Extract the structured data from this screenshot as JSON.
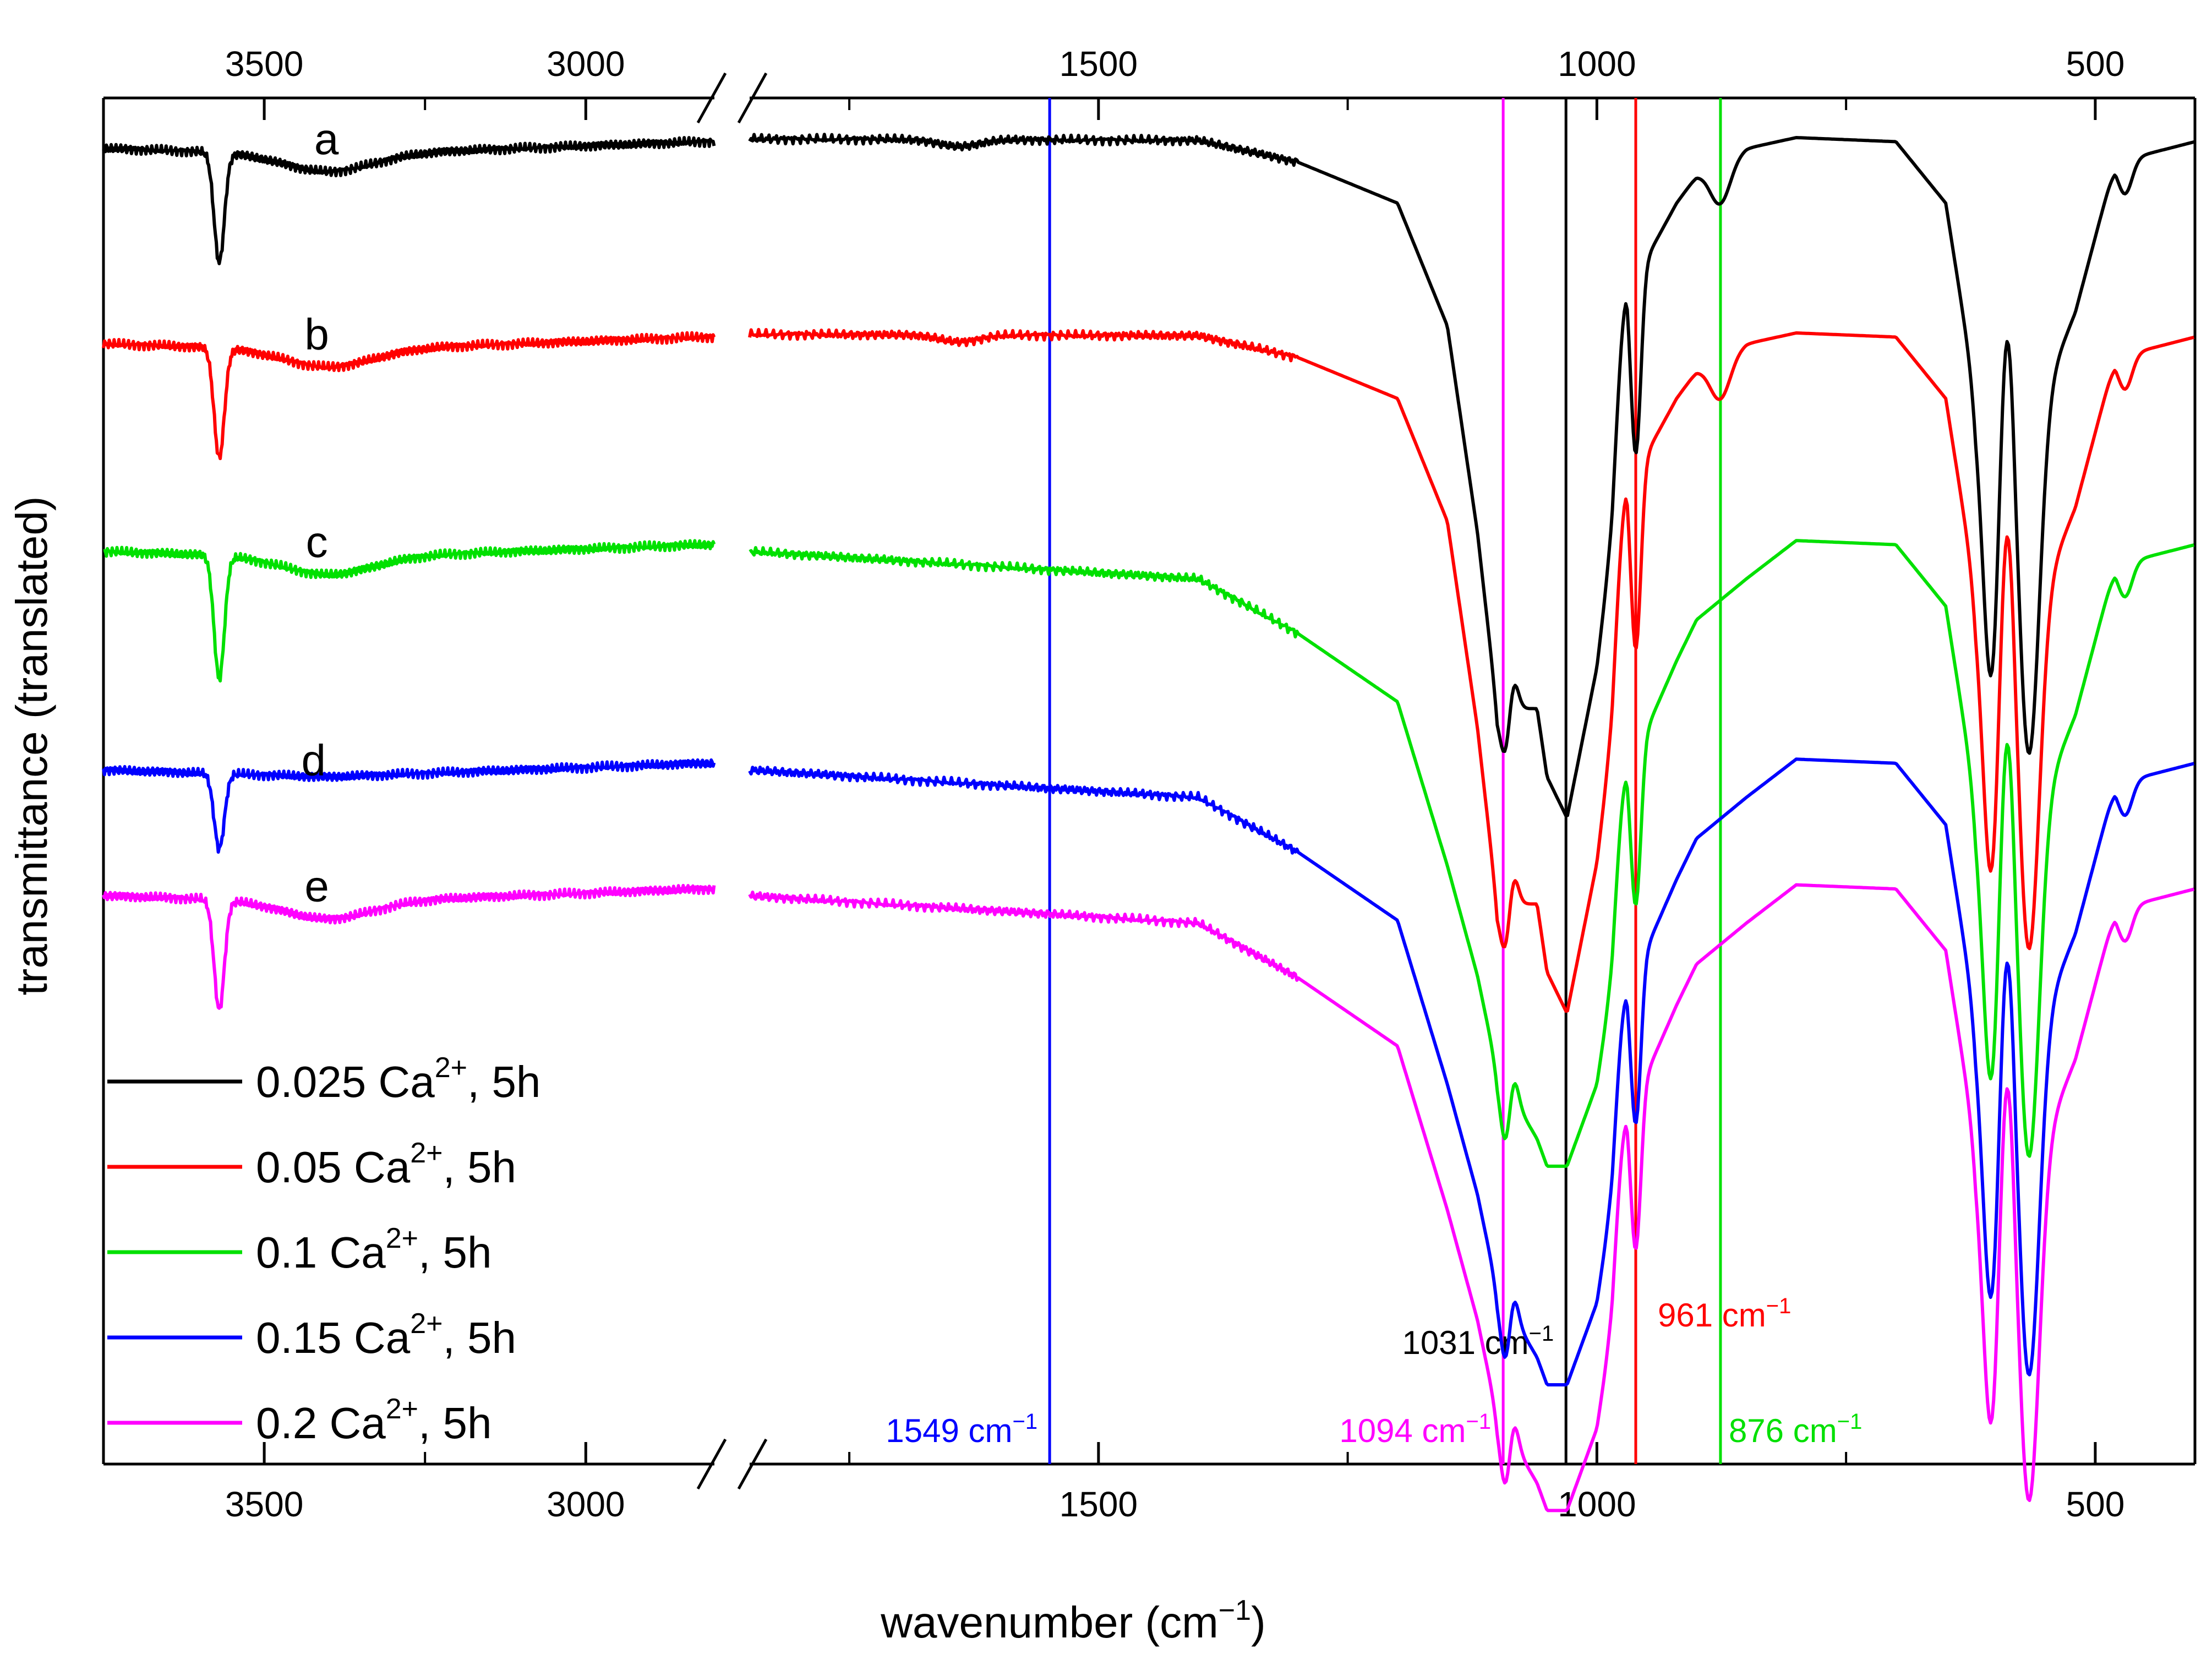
{
  "chart_data": {
    "type": "line",
    "title": "",
    "xlabel": "wavenumber (cm⁻¹)",
    "ylabel": "transmittance (translated)",
    "x_axis": {
      "reversed": true,
      "broken": true,
      "segments": [
        {
          "range": [
            3750,
            2800
          ],
          "ticks": [
            3500,
            3000
          ],
          "minor_ticks": [
            3750,
            3250,
            2750
          ]
        },
        {
          "range": [
            1850,
            400
          ],
          "ticks": [
            1500,
            1000,
            500
          ],
          "minor_ticks": [
            1750,
            1250,
            750
          ]
        }
      ]
    },
    "y_axis": {
      "range": [
        0,
        10
      ],
      "ticks_shown": false
    },
    "reference_lines": [
      {
        "x": 1549,
        "label": "1549 cm⁻¹",
        "color": "#0000ff",
        "label_position": "bottom-left"
      },
      {
        "x": 1094,
        "label": "1094 cm⁻¹",
        "color": "#ff00ff",
        "label_position": "bottom-left"
      },
      {
        "x": 1031,
        "label": "1031 cm⁻¹",
        "color": "#000000",
        "label_position": "lower-left"
      },
      {
        "x": 961,
        "label": "961 cm⁻¹",
        "color": "#ff0000",
        "label_position": "lower-right"
      },
      {
        "x": 876,
        "label": "876 cm⁻¹",
        "color": "#00e000",
        "label_position": "bottom-right"
      }
    ],
    "legend": {
      "position": "lower-left",
      "entries": [
        {
          "text": "0.025 Ca",
          "sup": "2+",
          "suffix": ", 5h",
          "color": "#000000"
        },
        {
          "text": "0.05 Ca",
          "sup": "2+",
          "suffix": ", 5h",
          "color": "#ff0000"
        },
        {
          "text": "0.1 Ca",
          "sup": "2+",
          "suffix": ", 5h",
          "color": "#00e000"
        },
        {
          "text": "0.15 Ca",
          "sup": "2+",
          "suffix": ", 5h",
          "color": "#0000ff"
        },
        {
          "text": "0.2 Ca",
          "sup": "2+",
          "suffix": ", 5h",
          "color": "#ff00ff"
        }
      ]
    },
    "series": [
      {
        "name": "0.025 Ca2+, 5h",
        "label": "a",
        "color": "#000000",
        "label_x": 3660,
        "baseline": 9.63,
        "slope": [
          [
            3750,
            0
          ],
          [
            3400,
            -0.05
          ],
          [
            2820,
            0.05
          ],
          [
            1850,
            0.07
          ],
          [
            1400,
            0.06
          ],
          [
            1300,
            -0.1
          ],
          [
            1200,
            -0.4
          ],
          [
            1150,
            -1.3
          ],
          [
            1120,
            -2.8
          ],
          [
            1100,
            -4.1
          ],
          [
            1060,
            -4.1
          ],
          [
            1050,
            -4.6
          ],
          [
            1030,
            -4.9
          ],
          [
            1000,
            -3.8
          ],
          [
            985,
            -2.9
          ],
          [
            970,
            -1.2
          ],
          [
            950,
            -0.8
          ],
          [
            920,
            -0.4
          ],
          [
            900,
            -0.2
          ],
          [
            850,
            0
          ],
          [
            800,
            0.08
          ],
          [
            700,
            0.05
          ],
          [
            650,
            -0.4
          ],
          [
            620,
            -1.8
          ],
          [
            580,
            -2.3
          ],
          [
            520,
            -1.2
          ],
          [
            480,
            -0.1
          ],
          [
            400,
            0.05
          ]
        ],
        "peaks": [
          [
            3570,
            0.8,
            8
          ],
          [
            3400,
            0.12,
            70
          ],
          [
            1640,
            0.05,
            20
          ],
          [
            1090,
            0.5,
            6
          ],
          [
            961,
            1.3,
            5
          ],
          [
            876,
            0.3,
            10
          ],
          [
            603,
            2.2,
            9
          ],
          [
            566,
            2.4,
            10
          ],
          [
            470,
            0.25,
            7
          ]
        ],
        "bumps": [
          [
            1085,
            0.45,
            5
          ],
          [
            975,
            0.4,
            8
          ],
          [
            590,
            1.6,
            8
          ]
        ]
      },
      {
        "name": "0.05 Ca2+, 5h",
        "label": "b",
        "color": "#ff0000",
        "label_x": 3675,
        "baseline": 8.2,
        "slope": [
          [
            3750,
            0
          ],
          [
            3400,
            -0.05
          ],
          [
            2820,
            0.05
          ],
          [
            1850,
            0.07
          ],
          [
            1400,
            0.06
          ],
          [
            1300,
            -0.1
          ],
          [
            1200,
            -0.4
          ],
          [
            1150,
            -1.3
          ],
          [
            1120,
            -2.8
          ],
          [
            1100,
            -4.1
          ],
          [
            1060,
            -4.1
          ],
          [
            1050,
            -4.6
          ],
          [
            1030,
            -4.9
          ],
          [
            1000,
            -3.8
          ],
          [
            985,
            -2.9
          ],
          [
            970,
            -1.2
          ],
          [
            950,
            -0.8
          ],
          [
            920,
            -0.4
          ],
          [
            900,
            -0.2
          ],
          [
            850,
            0
          ],
          [
            800,
            0.08
          ],
          [
            700,
            0.05
          ],
          [
            650,
            -0.4
          ],
          [
            620,
            -1.8
          ],
          [
            580,
            -2.3
          ],
          [
            520,
            -1.2
          ],
          [
            480,
            -0.1
          ],
          [
            400,
            0.05
          ]
        ],
        "peaks": [
          [
            3570,
            0.8,
            8
          ],
          [
            3400,
            0.12,
            70
          ],
          [
            1640,
            0.05,
            20
          ],
          [
            1090,
            0.5,
            6
          ],
          [
            961,
            1.3,
            5
          ],
          [
            876,
            0.3,
            10
          ],
          [
            603,
            2.2,
            9
          ],
          [
            566,
            2.4,
            10
          ],
          [
            470,
            0.25,
            7
          ]
        ],
        "bumps": [
          [
            1085,
            0.45,
            5
          ],
          [
            975,
            0.4,
            8
          ],
          [
            590,
            1.6,
            8
          ]
        ]
      },
      {
        "name": "0.1 Ca2+, 5h",
        "label": "c",
        "color": "#00e000",
        "label_x": 3675,
        "baseline": 6.68,
        "slope": [
          [
            3750,
            0
          ],
          [
            3400,
            -0.05
          ],
          [
            2820,
            0.05
          ],
          [
            1850,
            0.0
          ],
          [
            1400,
            -0.2
          ],
          [
            1300,
            -0.6
          ],
          [
            1200,
            -1.1
          ],
          [
            1150,
            -2.3
          ],
          [
            1120,
            -3.1
          ],
          [
            1100,
            -3.8
          ],
          [
            1060,
            -4.3
          ],
          [
            1050,
            -4.5
          ],
          [
            1030,
            -4.5
          ],
          [
            1000,
            -3.9
          ],
          [
            985,
            -3.2
          ],
          [
            970,
            -1.8
          ],
          [
            950,
            -1.3
          ],
          [
            920,
            -0.8
          ],
          [
            900,
            -0.5
          ],
          [
            850,
            -0.2
          ],
          [
            800,
            0.08
          ],
          [
            700,
            0.05
          ],
          [
            650,
            -0.4
          ],
          [
            620,
            -1.8
          ],
          [
            580,
            -2.3
          ],
          [
            520,
            -1.2
          ],
          [
            480,
            -0.1
          ],
          [
            400,
            0.05
          ]
        ],
        "peaks": [
          [
            3570,
            0.9,
            8
          ],
          [
            3400,
            0.12,
            70
          ],
          [
            1090,
            0.6,
            6
          ],
          [
            961,
            1.1,
            5
          ],
          [
            603,
            2.2,
            9
          ],
          [
            566,
            2.4,
            10
          ],
          [
            470,
            0.25,
            7
          ]
        ],
        "bumps": [
          [
            1085,
            0.45,
            5
          ],
          [
            975,
            0.4,
            8
          ],
          [
            590,
            1.6,
            8
          ]
        ]
      },
      {
        "name": "0.15 Ca2+, 5h",
        "label": "d",
        "color": "#0000ff",
        "label_x": 3680,
        "baseline": 5.08,
        "slope": [
          [
            3750,
            0
          ],
          [
            3400,
            -0.05
          ],
          [
            2820,
            0.05
          ],
          [
            1850,
            0.0
          ],
          [
            1400,
            -0.2
          ],
          [
            1300,
            -0.6
          ],
          [
            1200,
            -1.1
          ],
          [
            1150,
            -2.3
          ],
          [
            1120,
            -3.1
          ],
          [
            1100,
            -3.8
          ],
          [
            1060,
            -4.3
          ],
          [
            1050,
            -4.5
          ],
          [
            1030,
            -4.5
          ],
          [
            1000,
            -3.9
          ],
          [
            985,
            -3.2
          ],
          [
            970,
            -1.8
          ],
          [
            950,
            -1.3
          ],
          [
            920,
            -0.8
          ],
          [
            900,
            -0.5
          ],
          [
            850,
            -0.2
          ],
          [
            800,
            0.08
          ],
          [
            700,
            0.05
          ],
          [
            650,
            -0.4
          ],
          [
            620,
            -1.8
          ],
          [
            580,
            -2.3
          ],
          [
            520,
            -1.2
          ],
          [
            480,
            -0.1
          ],
          [
            400,
            0.05
          ]
        ],
        "peaks": [
          [
            3570,
            0.55,
            8
          ],
          [
            1090,
            0.6,
            6
          ],
          [
            961,
            1.1,
            5
          ],
          [
            603,
            2.2,
            9
          ],
          [
            566,
            2.4,
            10
          ],
          [
            470,
            0.25,
            7
          ]
        ],
        "bumps": [
          [
            1085,
            0.45,
            5
          ],
          [
            975,
            0.4,
            8
          ],
          [
            590,
            1.6,
            8
          ]
        ]
      },
      {
        "name": "0.2 Ca2+, 5h",
        "label": "e",
        "color": "#ff00ff",
        "label_x": 3675,
        "baseline": 4.16,
        "slope": [
          [
            3750,
            0
          ],
          [
            3400,
            -0.05
          ],
          [
            2820,
            0.05
          ],
          [
            1850,
            0.0
          ],
          [
            1400,
            -0.2
          ],
          [
            1300,
            -0.6
          ],
          [
            1200,
            -1.1
          ],
          [
            1150,
            -2.3
          ],
          [
            1120,
            -3.1
          ],
          [
            1100,
            -3.8
          ],
          [
            1060,
            -4.3
          ],
          [
            1050,
            -4.5
          ],
          [
            1030,
            -4.5
          ],
          [
            1000,
            -3.9
          ],
          [
            985,
            -3.2
          ],
          [
            970,
            -1.8
          ],
          [
            950,
            -1.3
          ],
          [
            920,
            -0.8
          ],
          [
            900,
            -0.5
          ],
          [
            850,
            -0.2
          ],
          [
            800,
            0.08
          ],
          [
            700,
            0.05
          ],
          [
            650,
            -0.4
          ],
          [
            620,
            -1.8
          ],
          [
            580,
            -2.3
          ],
          [
            520,
            -1.2
          ],
          [
            480,
            -0.1
          ],
          [
            400,
            0.05
          ]
        ],
        "peaks": [
          [
            3570,
            0.8,
            8
          ],
          [
            3400,
            0.12,
            70
          ],
          [
            1090,
            0.6,
            6
          ],
          [
            961,
            1.1,
            5
          ],
          [
            603,
            2.2,
            9
          ],
          [
            566,
            2.4,
            10
          ],
          [
            470,
            0.25,
            7
          ]
        ],
        "bumps": [
          [
            1085,
            0.45,
            5
          ],
          [
            975,
            0.4,
            8
          ],
          [
            590,
            1.6,
            8
          ]
        ]
      }
    ]
  }
}
